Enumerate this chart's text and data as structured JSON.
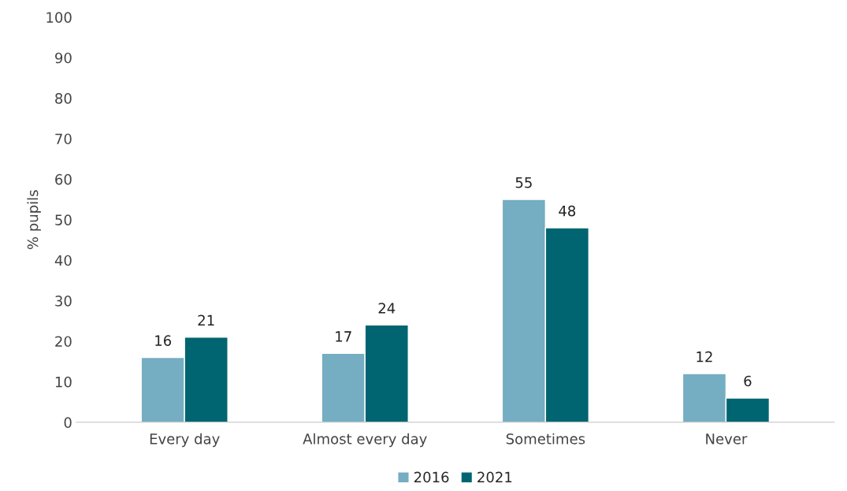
{
  "chart_data": {
    "type": "bar",
    "ylabel": "% pupils",
    "categories": [
      "Every day",
      "Almost every day",
      "Sometimes",
      "Never"
    ],
    "series": [
      {
        "name": "2016",
        "color": "#75adc2",
        "values": [
          16,
          17,
          55,
          12
        ]
      },
      {
        "name": "2021",
        "color": "#006570",
        "values": [
          21,
          24,
          48,
          6
        ]
      }
    ],
    "ylim": [
      0,
      100
    ],
    "yticks": [
      0,
      10,
      20,
      30,
      40,
      50,
      60,
      70,
      80,
      90,
      100
    ],
    "data_labels": true,
    "legend": "bottom",
    "grid": false
  }
}
